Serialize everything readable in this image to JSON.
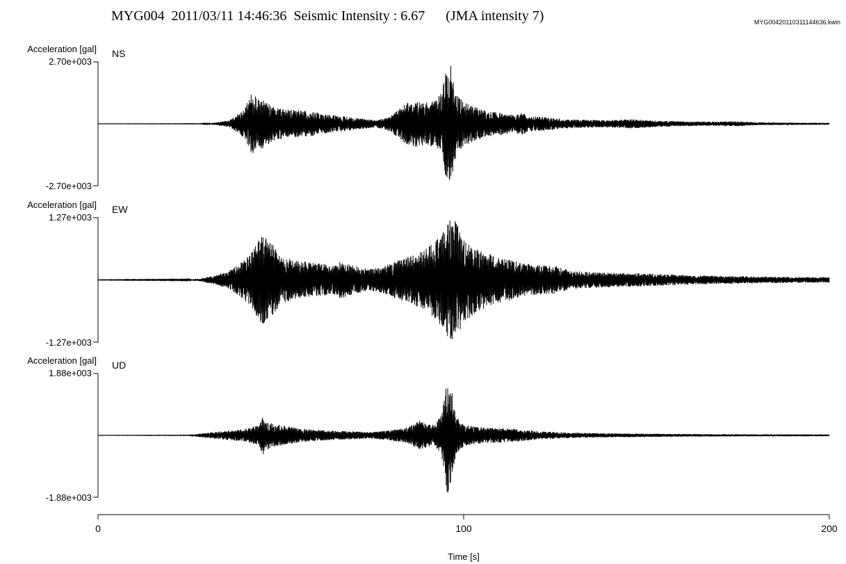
{
  "header": {
    "title": "MYG004  2011/03/11 14:46:36  Seismic Intensity : 6.67      (JMA intensity 7)",
    "filename": "MYG00420110311144636.kwin"
  },
  "chart_data": {
    "type": "line",
    "station": "MYG004",
    "datetime": "2011/03/11 14:46:36",
    "seismic_intensity": 6.67,
    "jma_intensity": "JMA intensity 7",
    "xlabel": "Time [s]",
    "xlim": [
      0,
      200
    ],
    "xticks": [
      0,
      100,
      200
    ],
    "panels": [
      {
        "component": "NS",
        "ylabel": "Acceleration [gal]",
        "ylim": [
          -2700,
          2700
        ],
        "ymax_label": "2.70e+003",
        "ymin_label": "-2.70e+003",
        "envelope": [
          [
            0,
            4
          ],
          [
            28,
            8
          ],
          [
            32,
            45
          ],
          [
            36,
            160
          ],
          [
            40,
            640
          ],
          [
            42,
            1330
          ],
          [
            45,
            1060
          ],
          [
            48,
            740
          ],
          [
            50,
            680
          ],
          [
            54,
            610
          ],
          [
            58,
            550
          ],
          [
            62,
            430
          ],
          [
            66,
            350
          ],
          [
            70,
            270
          ],
          [
            74,
            210
          ],
          [
            76,
            170
          ],
          [
            78,
            230
          ],
          [
            80,
            350
          ],
          [
            82,
            600
          ],
          [
            84,
            870
          ],
          [
            86,
            1010
          ],
          [
            88,
            990
          ],
          [
            90,
            940
          ],
          [
            92,
            1000
          ],
          [
            94,
            1350
          ],
          [
            95.5,
            2700
          ],
          [
            96.5,
            2600
          ],
          [
            98,
            1320
          ],
          [
            100,
            960
          ],
          [
            104,
            680
          ],
          [
            106,
            560
          ],
          [
            110,
            490
          ],
          [
            114,
            380
          ],
          [
            116,
            490
          ],
          [
            118,
            330
          ],
          [
            122,
            300
          ],
          [
            126,
            230
          ],
          [
            130,
            190
          ],
          [
            135,
            170
          ],
          [
            140,
            160
          ],
          [
            146,
            200
          ],
          [
            150,
            170
          ],
          [
            155,
            130
          ],
          [
            160,
            100
          ],
          [
            170,
            90
          ],
          [
            175,
            110
          ],
          [
            180,
            65
          ],
          [
            190,
            50
          ],
          [
            200,
            40
          ]
        ]
      },
      {
        "component": "EW",
        "ylabel": "Acceleration [gal]",
        "ylim": [
          -1270,
          1270
        ],
        "ymax_label": "1.27e+003",
        "ymin_label": "-1.27e+003",
        "envelope": [
          [
            0,
            4
          ],
          [
            25,
            10
          ],
          [
            28,
            28
          ],
          [
            32,
            95
          ],
          [
            36,
            200
          ],
          [
            40,
            410
          ],
          [
            42,
            560
          ],
          [
            45,
            945
          ],
          [
            48,
            720
          ],
          [
            50,
            470
          ],
          [
            55,
            390
          ],
          [
            60,
            340
          ],
          [
            65,
            300
          ],
          [
            66,
            390
          ],
          [
            70,
            290
          ],
          [
            74,
            220
          ],
          [
            78,
            270
          ],
          [
            80,
            340
          ],
          [
            84,
            450
          ],
          [
            88,
            560
          ],
          [
            92,
            770
          ],
          [
            94,
            960
          ],
          [
            96,
            1240
          ],
          [
            98,
            1200
          ],
          [
            100,
            850
          ],
          [
            104,
            640
          ],
          [
            108,
            500
          ],
          [
            112,
            430
          ],
          [
            114,
            390
          ],
          [
            116,
            340
          ],
          [
            120,
            310
          ],
          [
            125,
            280
          ],
          [
            130,
            180
          ],
          [
            135,
            160
          ],
          [
            140,
            150
          ],
          [
            145,
            140
          ],
          [
            150,
            130
          ],
          [
            160,
            100
          ],
          [
            170,
            80
          ],
          [
            180,
            70
          ],
          [
            190,
            60
          ],
          [
            200,
            55
          ]
        ]
      },
      {
        "component": "UD",
        "ylabel": "Acceleration [gal]",
        "ylim": [
          -1880,
          1880
        ],
        "ymax_label": "1.88e+003",
        "ymin_label": "-1.88e+003",
        "envelope": [
          [
            0,
            3
          ],
          [
            25,
            6
          ],
          [
            28,
            55
          ],
          [
            32,
            105
          ],
          [
            36,
            150
          ],
          [
            40,
            190
          ],
          [
            44,
            300
          ],
          [
            45,
            620
          ],
          [
            47,
            380
          ],
          [
            50,
            310
          ],
          [
            55,
            210
          ],
          [
            60,
            170
          ],
          [
            65,
            140
          ],
          [
            70,
            120
          ],
          [
            75,
            100
          ],
          [
            80,
            160
          ],
          [
            84,
            220
          ],
          [
            88,
            450
          ],
          [
            90,
            390
          ],
          [
            92,
            330
          ],
          [
            94,
            620
          ],
          [
            95.5,
            1850
          ],
          [
            96.5,
            1500
          ],
          [
            98,
            560
          ],
          [
            100,
            330
          ],
          [
            104,
            250
          ],
          [
            110,
            220
          ],
          [
            115,
            190
          ],
          [
            120,
            130
          ],
          [
            125,
            100
          ],
          [
            130,
            80
          ],
          [
            140,
            60
          ],
          [
            150,
            50
          ],
          [
            160,
            40
          ],
          [
            170,
            35
          ],
          [
            180,
            30
          ],
          [
            190,
            30
          ],
          [
            200,
            28
          ]
        ]
      }
    ]
  }
}
